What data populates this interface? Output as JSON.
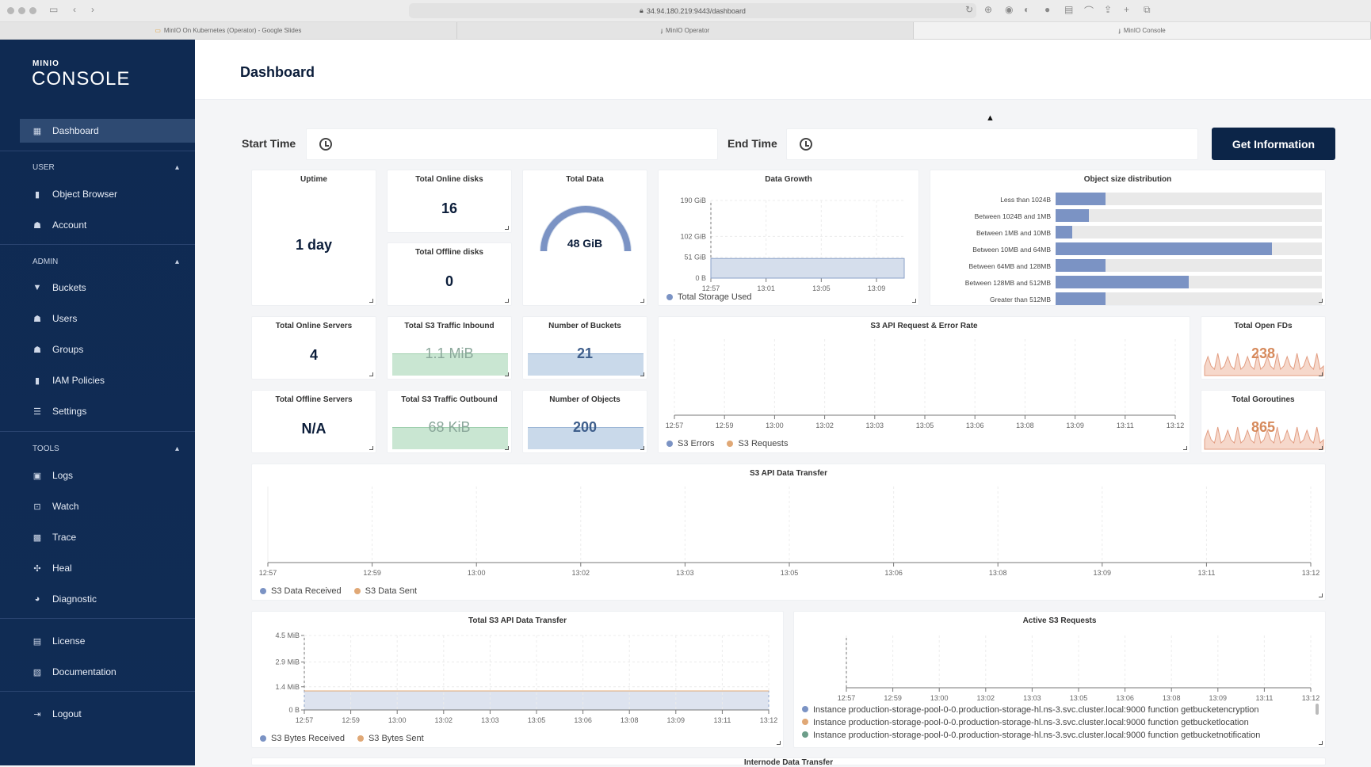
{
  "browser": {
    "url": "34.94.180.219:9443/dashboard",
    "tabs": [
      "MinIO On Kubernetes (Operator) - Google Slides",
      "MinIO Operator",
      "MinIO Console"
    ]
  },
  "sidebar": {
    "logo_small": "MINIO",
    "logo_big": "CONSOLE",
    "dashboard": "Dashboard",
    "user_section": "USER",
    "user_items": [
      "Object Browser",
      "Account"
    ],
    "admin_section": "ADMIN",
    "admin_items": [
      "Buckets",
      "Users",
      "Groups",
      "IAM Policies",
      "Settings"
    ],
    "tools_section": "TOOLS",
    "tools_items": [
      "Logs",
      "Watch",
      "Trace",
      "Heal",
      "Diagnostic"
    ],
    "bottom_items": [
      "License",
      "Documentation"
    ],
    "logout": "Logout"
  },
  "header": {
    "title": "Dashboard"
  },
  "filters": {
    "start_label": "Start Time",
    "end_label": "End Time",
    "button": "Get Information"
  },
  "cards": {
    "uptime": {
      "title": "Uptime",
      "value": "1 day"
    },
    "online_disks": {
      "title": "Total Online disks",
      "value": "16"
    },
    "offline_disks": {
      "title": "Total Offline disks",
      "value": "0"
    },
    "total_data": {
      "title": "Total Data",
      "value": "48 GiB"
    },
    "online_servers": {
      "title": "Total Online Servers",
      "value": "4"
    },
    "offline_servers": {
      "title": "Total Offline Servers",
      "value": "N/A"
    },
    "traffic_in": {
      "title": "Total S3 Traffic Inbound",
      "value": "1.1 MiB"
    },
    "traffic_out": {
      "title": "Total S3 Traffic Outbound",
      "value": "68 KiB"
    },
    "buckets": {
      "title": "Number of Buckets",
      "value": "21"
    },
    "objects": {
      "title": "Number of Objects",
      "value": "200"
    },
    "open_fds": {
      "title": "Total Open FDs",
      "value": "238"
    },
    "goroutines": {
      "title": "Total Goroutines",
      "value": "865"
    }
  },
  "chart_data": [
    {
      "type": "area",
      "title": "Data Growth",
      "x": [
        "12:57",
        "13:01",
        "13:05",
        "13:09"
      ],
      "yticks": [
        "190 GiB",
        "102 GiB",
        "51 GiB",
        "0 B"
      ],
      "series": [
        {
          "name": "Total Storage Used",
          "color": "#8aa0c8",
          "values": [
            48,
            48,
            48,
            48
          ]
        }
      ],
      "ylim": [
        0,
        190
      ]
    },
    {
      "type": "bar",
      "title": "Object size distribution",
      "categories": [
        "Less than 1024B",
        "Between 1024B and 1MB",
        "Between 1MB and 10MB",
        "Between 10MB and 64MB",
        "Between 64MB and 128MB",
        "Between 128MB and 512MB",
        "Greater than 512MB"
      ],
      "values": [
        3,
        2,
        1,
        13,
        3,
        8,
        3
      ],
      "max": 16,
      "color": "#7b93c4"
    },
    {
      "type": "line",
      "title": "S3 API Request & Error Rate",
      "x": [
        "12:57",
        "12:59",
        "13:00",
        "13:02",
        "13:03",
        "13:05",
        "13:06",
        "13:08",
        "13:09",
        "13:11",
        "13:12"
      ],
      "series": [
        {
          "name": "S3 Errors",
          "color": "#7b93c4"
        },
        {
          "name": "S3 Requests",
          "color": "#e0a876"
        }
      ]
    },
    {
      "type": "line",
      "title": "S3 API Data Transfer",
      "x": [
        "12:57",
        "12:59",
        "13:00",
        "13:02",
        "13:03",
        "13:05",
        "13:06",
        "13:08",
        "13:09",
        "13:11",
        "13:12"
      ],
      "series": [
        {
          "name": "S3 Data Received",
          "color": "#7b93c4"
        },
        {
          "name": "S3 Data Sent",
          "color": "#e0a876"
        }
      ]
    },
    {
      "type": "area",
      "title": "Total S3 API Data Transfer",
      "x": [
        "12:57",
        "12:59",
        "13:00",
        "13:02",
        "13:03",
        "13:05",
        "13:06",
        "13:08",
        "13:09",
        "13:11",
        "13:12"
      ],
      "yticks": [
        "4.5 MiB",
        "2.9 MiB",
        "1.4 MiB",
        "0 B"
      ],
      "series": [
        {
          "name": "S3 Bytes Received",
          "color": "#7b93c4"
        },
        {
          "name": "S3 Bytes Sent",
          "color": "#e0a876"
        }
      ],
      "ylim": [
        0,
        4.5
      ]
    },
    {
      "type": "line",
      "title": "Active S3 Requests",
      "x": [
        "12:57",
        "12:59",
        "13:00",
        "13:02",
        "13:03",
        "13:05",
        "13:06",
        "13:08",
        "13:09",
        "13:11",
        "13:12"
      ],
      "series": [
        {
          "name": "Instance production-storage-pool-0-0.production-storage-hl.ns-3.svc.cluster.local:9000 function getbucketencryption",
          "color": "#7b93c4"
        },
        {
          "name": "Instance production-storage-pool-0-0.production-storage-hl.ns-3.svc.cluster.local:9000 function getbucketlocation",
          "color": "#e0a876"
        },
        {
          "name": "Instance production-storage-pool-0-0.production-storage-hl.ns-3.svc.cluster.local:9000 function getbucketnotification",
          "color": "#6d9e8a"
        }
      ]
    }
  ],
  "bottom_title": "Internode Data Transfer"
}
